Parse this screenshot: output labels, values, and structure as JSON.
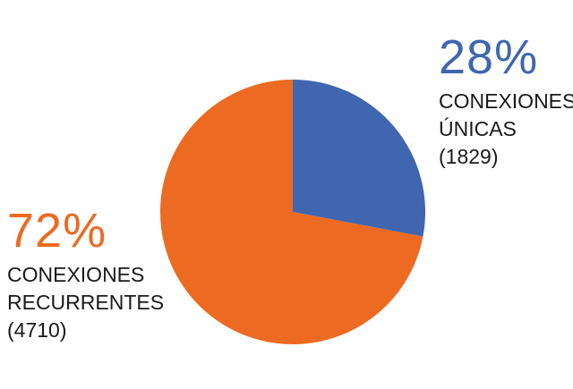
{
  "chart_data": {
    "type": "pie",
    "slices": [
      {
        "id": "unicas",
        "percent_label": "28%",
        "label_lines": [
          "CONEXIONES",
          "ÚNICAS"
        ],
        "count_label": "(1829)",
        "value": 1829,
        "color": "#3f66af"
      },
      {
        "id": "recurrentes",
        "percent_label": "72%",
        "label_lines": [
          "CONEXIONES",
          "RECURRENTES"
        ],
        "count_label": "(4710)",
        "value": 4710,
        "color": "#ec6a22"
      }
    ],
    "start": "12 o'clock",
    "direction": "clockwise",
    "legend": "none"
  }
}
